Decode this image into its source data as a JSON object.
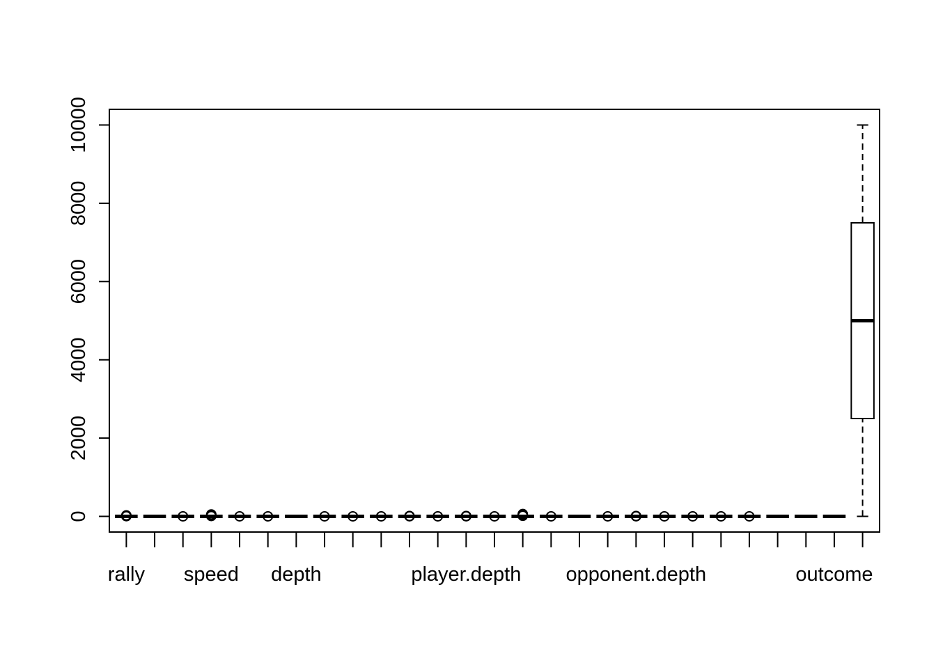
{
  "chart_data": {
    "type": "boxplot",
    "title": "",
    "xlabel": "",
    "ylabel": "",
    "ylim": [
      -400,
      10400
    ],
    "y_ticks": [
      0,
      2000,
      4000,
      6000,
      8000,
      10000
    ],
    "y_tick_labels": [
      "0",
      "2000",
      "4000",
      "6000",
      "8000",
      "10000"
    ],
    "x_labels_shown": [
      "rally",
      "speed",
      "depth",
      "player.depth",
      "opponent.depth",
      "outcome"
    ],
    "x_label_positions": [
      1,
      4,
      7,
      13,
      19,
      26
    ],
    "n_boxes": 27,
    "grid": false,
    "legend": "none",
    "boxes": [
      {
        "pos": 1,
        "min": 0,
        "q1": 0,
        "median": 0,
        "q3": 0,
        "max": 0,
        "outliers": [
          5,
          10,
          15,
          20,
          25
        ]
      },
      {
        "pos": 2,
        "min": 0,
        "q1": 0,
        "median": 0,
        "q3": 0,
        "max": 0,
        "outliers": []
      },
      {
        "pos": 3,
        "min": 0,
        "q1": 0,
        "median": 0,
        "q3": 0,
        "max": 0,
        "outliers": [
          1
        ]
      },
      {
        "pos": 4,
        "min": 0,
        "q1": 0,
        "median": 0,
        "q3": 0,
        "max": 0,
        "outliers": [
          10,
          20,
          30,
          40,
          50
        ]
      },
      {
        "pos": 5,
        "min": 0,
        "q1": 0,
        "median": 0,
        "q3": 0,
        "max": 0,
        "outliers": [
          1
        ]
      },
      {
        "pos": 6,
        "min": 0,
        "q1": 0,
        "median": 0,
        "q3": 0,
        "max": 0,
        "outliers": [
          1
        ]
      },
      {
        "pos": 7,
        "min": 0,
        "q1": 0,
        "median": 0,
        "q3": 0,
        "max": 0,
        "outliers": []
      },
      {
        "pos": 8,
        "min": 0,
        "q1": 0,
        "median": 0,
        "q3": 0,
        "max": 0,
        "outliers": [
          1
        ]
      },
      {
        "pos": 9,
        "min": 0,
        "q1": 0,
        "median": 0,
        "q3": 0,
        "max": 0,
        "outliers": [
          1
        ]
      },
      {
        "pos": 10,
        "min": 0,
        "q1": 0,
        "median": 0,
        "q3": 0,
        "max": 0,
        "outliers": [
          1
        ]
      },
      {
        "pos": 11,
        "min": 0,
        "q1": 0,
        "median": 0,
        "q3": 0,
        "max": 0,
        "outliers": [
          3,
          6,
          10
        ]
      },
      {
        "pos": 12,
        "min": 0,
        "q1": 0,
        "median": 0,
        "q3": 0,
        "max": 0,
        "outliers": [
          1
        ]
      },
      {
        "pos": 13,
        "min": 0,
        "q1": 0,
        "median": 0,
        "q3": 0,
        "max": 0,
        "outliers": [
          3,
          6,
          10
        ]
      },
      {
        "pos": 14,
        "min": 0,
        "q1": 0,
        "median": 0,
        "q3": 0,
        "max": 0,
        "outliers": [
          1
        ]
      },
      {
        "pos": 15,
        "min": 0,
        "q1": 0,
        "median": 0,
        "q3": 0,
        "max": 0,
        "outliers": [
          15,
          30,
          45,
          60
        ]
      },
      {
        "pos": 16,
        "min": 0,
        "q1": 0,
        "median": 0,
        "q3": 0,
        "max": 0,
        "outliers": [
          1
        ]
      },
      {
        "pos": 17,
        "min": 0,
        "q1": 0,
        "median": 0,
        "q3": 0,
        "max": 0,
        "outliers": []
      },
      {
        "pos": 18,
        "min": 0,
        "q1": 0,
        "median": 0,
        "q3": 0,
        "max": 0,
        "outliers": [
          1
        ]
      },
      {
        "pos": 19,
        "min": 0,
        "q1": 0,
        "median": 0,
        "q3": 0,
        "max": 0,
        "outliers": [
          3,
          6,
          10
        ]
      },
      {
        "pos": 20,
        "min": 0,
        "q1": 0,
        "median": 0,
        "q3": 0,
        "max": 0,
        "outliers": [
          1
        ]
      },
      {
        "pos": 21,
        "min": 0,
        "q1": 0,
        "median": 0,
        "q3": 0,
        "max": 0,
        "outliers": [
          1
        ]
      },
      {
        "pos": 22,
        "min": 0,
        "q1": 0,
        "median": 0,
        "q3": 0,
        "max": 0,
        "outliers": [
          1
        ]
      },
      {
        "pos": 23,
        "min": 0,
        "q1": 0,
        "median": 0,
        "q3": 0,
        "max": 0,
        "outliers": [
          1
        ]
      },
      {
        "pos": 24,
        "min": 0,
        "q1": 0,
        "median": 0,
        "q3": 0,
        "max": 0,
        "outliers": []
      },
      {
        "pos": 25,
        "min": 0,
        "q1": 0,
        "median": 0,
        "q3": 0,
        "max": 0,
        "outliers": []
      },
      {
        "pos": 26,
        "min": 0,
        "q1": 0,
        "median": 0,
        "q3": 0,
        "max": 0,
        "outliers": []
      },
      {
        "pos": 27,
        "min": 1,
        "q1": 2500,
        "median": 5000,
        "q3": 7500,
        "max": 10000,
        "outliers": []
      }
    ]
  }
}
